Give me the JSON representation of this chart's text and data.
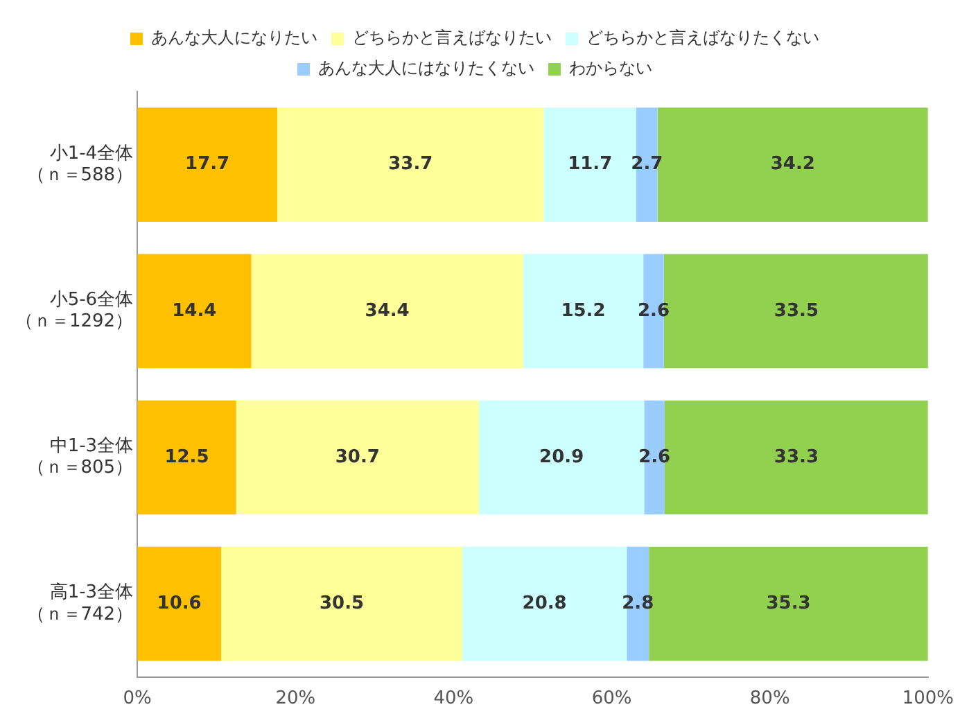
{
  "chart_data": {
    "type": "bar",
    "orientation": "horizontal",
    "stacked": true,
    "categories": [
      "小1-4全体（ｎ＝588）",
      "小5-6全体（ｎ＝1292）",
      "中1-3全体（ｎ＝805）",
      "高1-3全体（ｎ＝742）"
    ],
    "series": [
      {
        "name": "あんな大人になりたい",
        "color": "#ffc000",
        "values": [
          17.7,
          14.4,
          12.5,
          10.6
        ]
      },
      {
        "name": "どちらかと言えばなりたい",
        "color": "#ffff99",
        "values": [
          33.7,
          34.4,
          30.7,
          30.5
        ]
      },
      {
        "name": "どちらかと言えばなりたくない",
        "color": "#ccffff",
        "values": [
          11.7,
          15.2,
          20.9,
          20.8
        ]
      },
      {
        "name": "あんな大人にはなりたくない",
        "color": "#99ccff",
        "values": [
          2.7,
          2.6,
          2.6,
          2.8
        ]
      },
      {
        "name": "わからない",
        "color": "#92d050",
        "values": [
          34.2,
          33.5,
          33.3,
          35.3
        ]
      }
    ],
    "xlim": [
      0,
      100
    ],
    "xticks": [
      {
        "value": 0,
        "label": "0%"
      },
      {
        "value": 20,
        "label": "20%"
      },
      {
        "value": 40,
        "label": "40%"
      },
      {
        "value": 60,
        "label": "60%"
      },
      {
        "value": 80,
        "label": "80%"
      },
      {
        "value": 100,
        "label": "100%"
      }
    ],
    "grid": false,
    "legend": "top",
    "data_labels": true
  }
}
